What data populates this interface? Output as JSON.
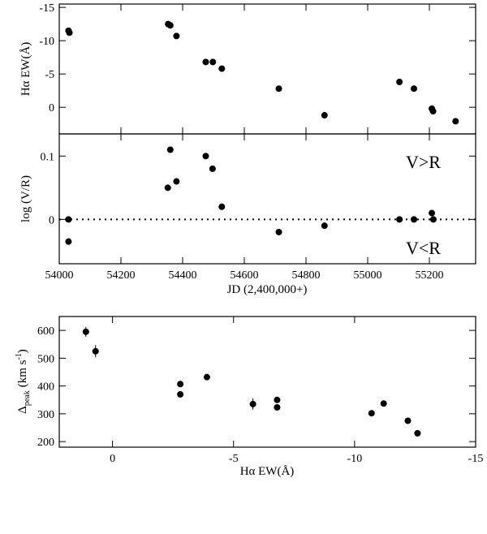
{
  "chart_data": [
    {
      "type": "scatter",
      "ylabel_main": "Hα EW(Å)",
      "ylim": [
        -15.5,
        4.0
      ],
      "yticks": [
        -15,
        -10,
        -5,
        0
      ],
      "xlim": [
        54000,
        55350
      ],
      "points": [
        {
          "x": 54030,
          "y": -11.5
        },
        {
          "x": 54033,
          "y": -11.2
        },
        {
          "x": 54353,
          "y": -12.5
        },
        {
          "x": 54360,
          "y": -12.3
        },
        {
          "x": 54380,
          "y": -10.7
        },
        {
          "x": 54475,
          "y": -6.8
        },
        {
          "x": 54498,
          "y": -6.8
        },
        {
          "x": 54527,
          "y": -5.8
        },
        {
          "x": 54712,
          "y": -2.8
        },
        {
          "x": 54860,
          "y": 1.2
        },
        {
          "x": 55103,
          "y": -3.8
        },
        {
          "x": 55150,
          "y": -2.8
        },
        {
          "x": 55208,
          "y": 0.2
        },
        {
          "x": 55212,
          "y": 0.6
        },
        {
          "x": 55285,
          "y": 2.1
        }
      ]
    },
    {
      "type": "scatter",
      "ylabel": "log (V/R)",
      "xlabel": "JD (2,400,000+)",
      "ylim": [
        -0.07,
        0.135
      ],
      "yticks": [
        0,
        0.1
      ],
      "xlim": [
        54000,
        55350
      ],
      "xticks": [
        54000,
        54200,
        54400,
        54600,
        54800,
        55000,
        55200
      ],
      "reference_line_y": 0,
      "annotations": [
        "V>R",
        "V<R"
      ],
      "points": [
        {
          "x": 54030,
          "y": 0.0
        },
        {
          "x": 54030,
          "y": -0.035
        },
        {
          "x": 54352,
          "y": 0.05
        },
        {
          "x": 54360,
          "y": 0.11
        },
        {
          "x": 54380,
          "y": 0.06
        },
        {
          "x": 54475,
          "y": 0.1
        },
        {
          "x": 54497,
          "y": 0.08
        },
        {
          "x": 54527,
          "y": 0.02
        },
        {
          "x": 54712,
          "y": -0.02
        },
        {
          "x": 54860,
          "y": -0.01
        },
        {
          "x": 55103,
          "y": 0.0
        },
        {
          "x": 55150,
          "y": 0.0
        },
        {
          "x": 55208,
          "y": 0.01
        },
        {
          "x": 55213,
          "y": 0.0
        }
      ]
    },
    {
      "type": "scatter",
      "ylabel_main": "Δ",
      "ylabel_sub": "peak",
      "ylabel_unit": "(km s",
      "ylabel_exp": "-1",
      "ylabel_close": ")",
      "xlabel": "Hα EW(Å)",
      "xlim": [
        2.2,
        -15.0
      ],
      "xticks": [
        0,
        -5,
        -10,
        -15
      ],
      "ylim": [
        180,
        650
      ],
      "yticks": [
        200,
        300,
        400,
        500,
        600
      ],
      "points": [
        {
          "x": 1.1,
          "y": 595,
          "err": 18
        },
        {
          "x": 0.7,
          "y": 525,
          "err": 22
        },
        {
          "x": -2.8,
          "y": 407,
          "err": 0
        },
        {
          "x": -2.8,
          "y": 370,
          "err": 0
        },
        {
          "x": -3.9,
          "y": 432,
          "err": 0
        },
        {
          "x": -5.8,
          "y": 335,
          "err": 20
        },
        {
          "x": -6.8,
          "y": 350,
          "err": 0
        },
        {
          "x": -6.8,
          "y": 323,
          "err": 0
        },
        {
          "x": -10.7,
          "y": 302,
          "err": 8
        },
        {
          "x": -11.2,
          "y": 337,
          "err": 0
        },
        {
          "x": -12.2,
          "y": 275,
          "err": 0
        },
        {
          "x": -12.6,
          "y": 230,
          "err": 0
        }
      ]
    }
  ]
}
